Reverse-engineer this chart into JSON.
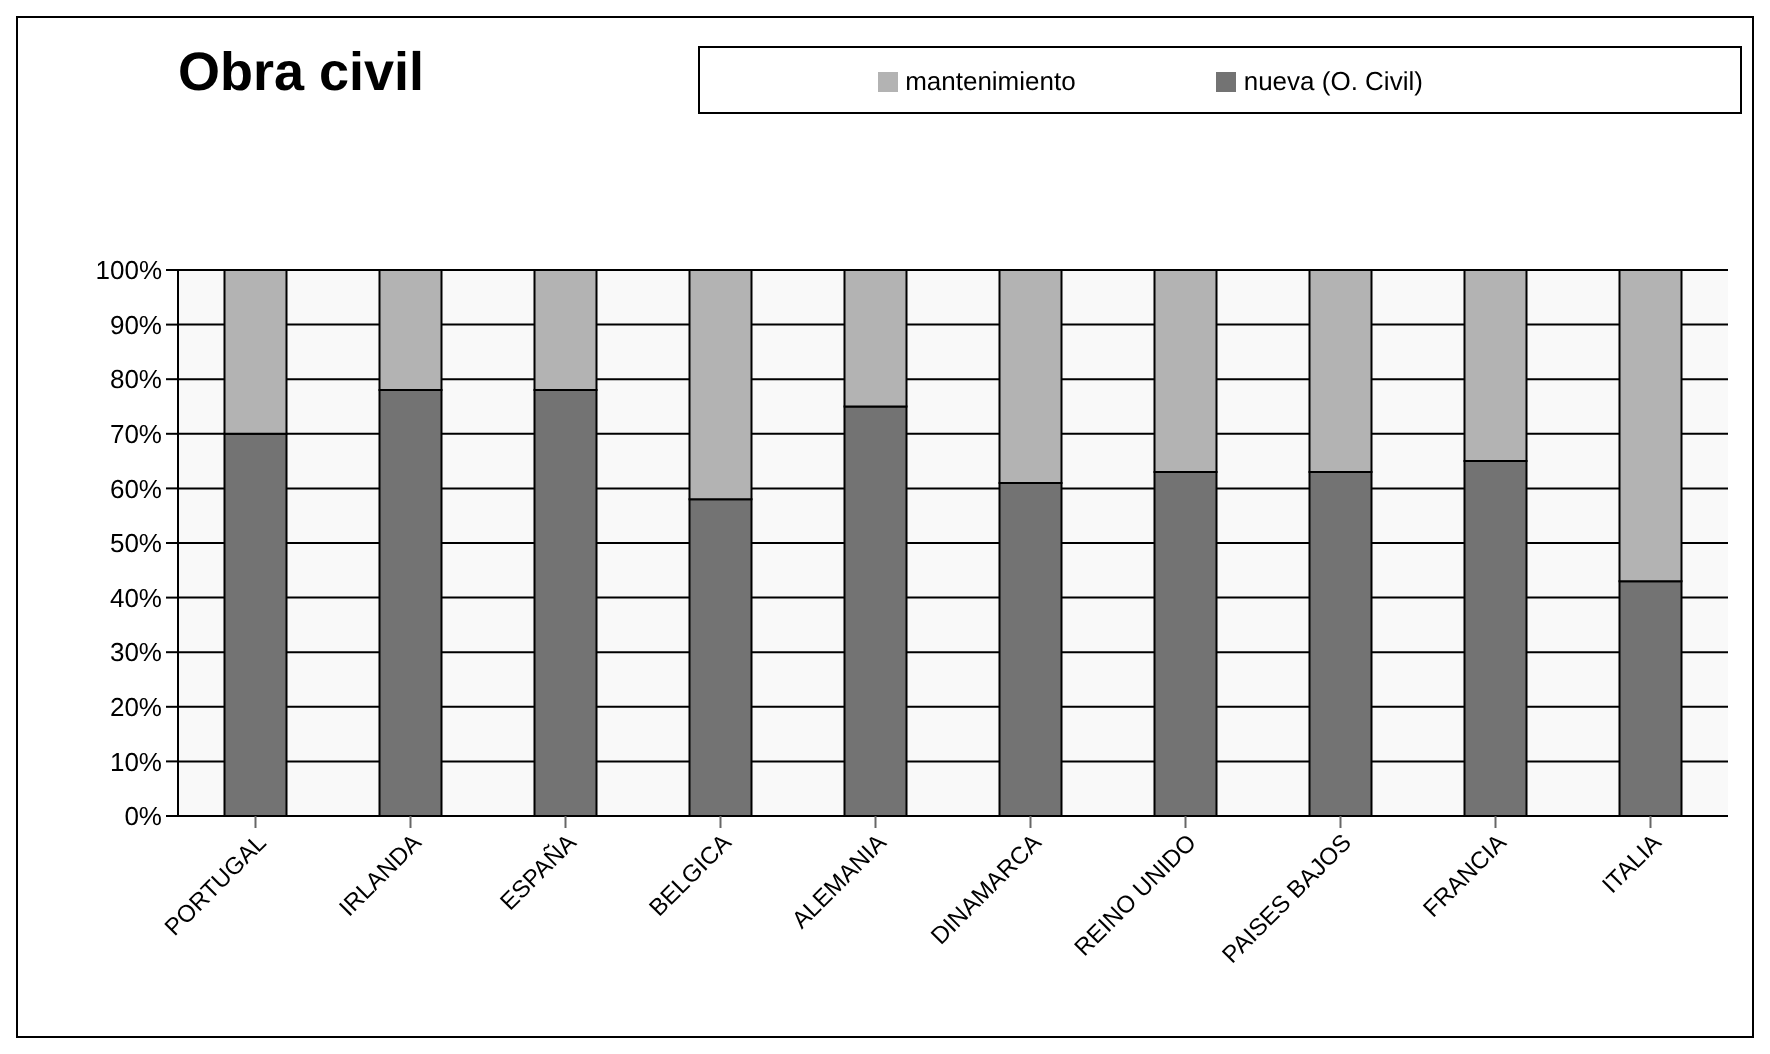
{
  "chart_data": {
    "type": "bar",
    "title": "Obra civil",
    "stacked": true,
    "categories": [
      "PORTUGAL",
      "IRLANDA",
      "ESPAÑA",
      "BELGICA",
      "ALEMANIA",
      "DINAMARCA",
      "REINO UNIDO",
      "PAISES BAJOS",
      "FRANCIA",
      "ITALIA"
    ],
    "series": [
      {
        "name": "nueva (O. Civil)",
        "color": "#737373",
        "values": [
          70,
          78,
          78,
          58,
          75,
          61,
          63,
          63,
          65,
          43
        ]
      },
      {
        "name": "mantenimiento",
        "color": "#b3b3b3",
        "values": [
          30,
          22,
          22,
          42,
          25,
          39,
          37,
          37,
          35,
          57
        ]
      }
    ],
    "ylim": [
      0,
      100
    ],
    "yticks": [
      {
        "value": 0,
        "label": "0%"
      },
      {
        "value": 10,
        "label": "10%"
      },
      {
        "value": 20,
        "label": "20%"
      },
      {
        "value": 30,
        "label": "30%"
      },
      {
        "value": 40,
        "label": "40%"
      },
      {
        "value": 50,
        "label": "50%"
      },
      {
        "value": 60,
        "label": "60%"
      },
      {
        "value": 70,
        "label": "70%"
      },
      {
        "value": 80,
        "label": "80%"
      },
      {
        "value": 90,
        "label": "90%"
      },
      {
        "value": 100,
        "label": "100%"
      }
    ],
    "grid": "y",
    "legend": "top right"
  }
}
